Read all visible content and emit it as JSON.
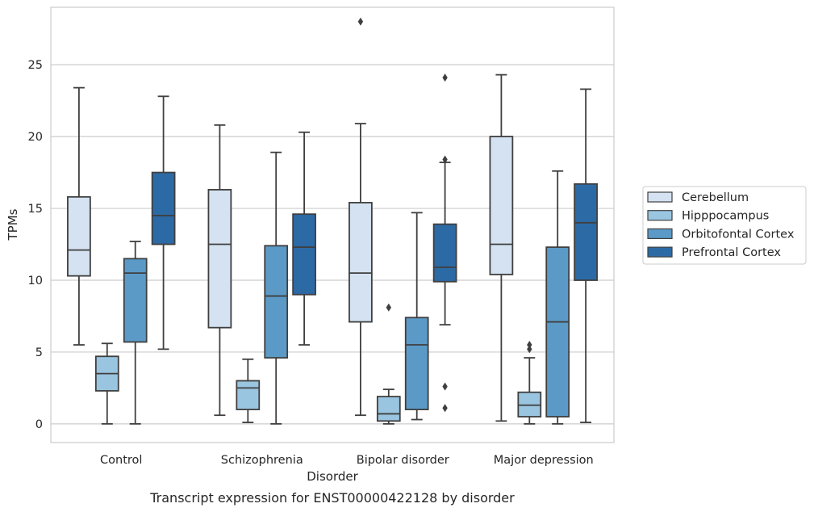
{
  "chart_data": {
    "type": "box",
    "title": "",
    "caption": "Transcript expression for ENST00000422128 by disorder",
    "xlabel": "Disorder",
    "ylabel": "TPMs",
    "categories": [
      "Control",
      "Schizophrenia",
      "Bipolar disorder",
      "Major depression"
    ],
    "yticks": [
      0,
      5,
      10,
      15,
      20,
      25
    ],
    "ylim": [
      -1.3,
      29.0
    ],
    "grid": "horizontal",
    "legend_position": "right",
    "series": [
      {
        "name": "Cerebellum",
        "color": "#d4e2f1",
        "boxes": [
          {
            "whislo": 5.5,
            "q1": 10.3,
            "med": 12.1,
            "q3": 15.8,
            "whishi": 23.4,
            "fliers": []
          },
          {
            "whislo": 0.6,
            "q1": 6.7,
            "med": 12.5,
            "q3": 16.3,
            "whishi": 20.8,
            "fliers": []
          },
          {
            "whislo": 0.6,
            "q1": 7.1,
            "med": 10.5,
            "q3": 15.4,
            "whishi": 20.9,
            "fliers": [
              28.0
            ]
          },
          {
            "whislo": 0.2,
            "q1": 10.4,
            "med": 12.5,
            "q3": 20.0,
            "whishi": 24.3,
            "fliers": []
          }
        ]
      },
      {
        "name": "Hipppocampus",
        "color": "#9ac5e0",
        "boxes": [
          {
            "whislo": 0.0,
            "q1": 2.3,
            "med": 3.5,
            "q3": 4.7,
            "whishi": 5.6,
            "fliers": []
          },
          {
            "whislo": 0.1,
            "q1": 1.0,
            "med": 2.5,
            "q3": 3.0,
            "whishi": 4.5,
            "fliers": []
          },
          {
            "whislo": 0.0,
            "q1": 0.2,
            "med": 0.7,
            "q3": 1.9,
            "whishi": 2.4,
            "fliers": [
              8.1
            ]
          },
          {
            "whislo": 0.0,
            "q1": 0.5,
            "med": 1.3,
            "q3": 2.2,
            "whishi": 4.6,
            "fliers": [
              5.2,
              5.5
            ]
          }
        ]
      },
      {
        "name": "Orbitofontal Cortex",
        "color": "#5b9ac7",
        "boxes": [
          {
            "whislo": 0.0,
            "q1": 5.7,
            "med": 10.5,
            "q3": 11.5,
            "whishi": 12.7,
            "fliers": []
          },
          {
            "whislo": 0.0,
            "q1": 4.6,
            "med": 8.9,
            "q3": 12.4,
            "whishi": 18.9,
            "fliers": []
          },
          {
            "whislo": 0.3,
            "q1": 1.0,
            "med": 5.5,
            "q3": 7.4,
            "whishi": 14.7,
            "fliers": []
          },
          {
            "whislo": 0.0,
            "q1": 0.5,
            "med": 7.1,
            "q3": 12.3,
            "whishi": 17.6,
            "fliers": []
          }
        ]
      },
      {
        "name": "Prefrontal Cortex",
        "color": "#2c6aa6",
        "boxes": [
          {
            "whislo": 5.2,
            "q1": 12.5,
            "med": 14.5,
            "q3": 17.5,
            "whishi": 22.8,
            "fliers": []
          },
          {
            "whislo": 5.5,
            "q1": 9.0,
            "med": 12.3,
            "q3": 14.6,
            "whishi": 20.3,
            "fliers": []
          },
          {
            "whislo": 6.9,
            "q1": 9.9,
            "med": 10.9,
            "q3": 13.9,
            "whishi": 18.2,
            "fliers": [
              18.4,
              24.1,
              2.6,
              1.1
            ]
          },
          {
            "whislo": 0.1,
            "q1": 10.0,
            "med": 14.0,
            "q3": 16.7,
            "whishi": 23.3,
            "fliers": []
          }
        ]
      }
    ]
  }
}
